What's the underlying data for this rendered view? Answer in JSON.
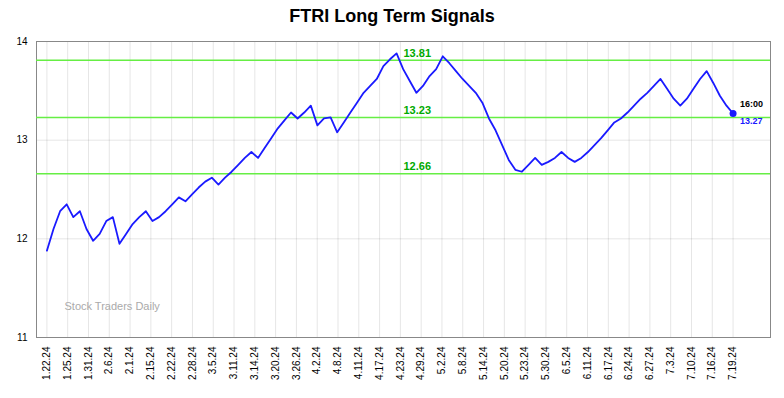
{
  "chart_data": {
    "type": "line",
    "title": "FTRI Long Term Signals",
    "x": [
      0,
      0.3173,
      0.6346,
      0.9519,
      1.2692,
      1.5865,
      1.9038,
      2.2212,
      2.5385,
      2.8558,
      3.1731,
      3.4904,
      3.8077,
      4.125,
      4.4423,
      4.7596,
      5.0769,
      5.3942,
      5.7115,
      6.0288,
      6.3462,
      6.6635,
      6.9808,
      7.2981,
      7.6154,
      7.9327,
      8.25,
      8.5673,
      8.8846,
      9.2019,
      9.5192,
      9.8365,
      10.1538,
      10.4712,
      10.7885,
      11.1058,
      11.4231,
      11.7404,
      12.0577,
      12.375,
      12.6923,
      13.0096,
      13.3269,
      13.6442,
      13.9615,
      14.2788,
      14.5962,
      14.9135,
      15.2308,
      15.5481,
      15.8654,
      16.1827,
      16.5,
      16.8173,
      17.1346,
      17.4519,
      17.7692,
      18.0865,
      18.4038,
      18.7212,
      19.0385,
      19.3558,
      19.6731,
      19.9904,
      20.3077,
      20.625,
      20.9423,
      21.2596,
      21.5769,
      21.8942,
      22.2115,
      22.5288,
      22.8462,
      23.1635,
      23.4808,
      23.7981,
      24.1154,
      24.4327,
      24.75,
      25.0673,
      25.3846,
      25.7019,
      26.0192,
      26.3365,
      26.6538,
      26.9712,
      27.2885,
      27.6058,
      27.9231,
      28.2404,
      28.5577,
      28.875,
      29.1923,
      29.5096,
      29.8269,
      30.1442,
      30.4615,
      30.7788,
      31.0962,
      31.4135,
      31.7308,
      32.0481,
      32.3654,
      32.6827,
      33
    ],
    "values": [
      11.88,
      12.1,
      12.28,
      12.35,
      12.22,
      12.28,
      12.1,
      11.98,
      12.05,
      12.18,
      12.22,
      11.95,
      12.05,
      12.15,
      12.22,
      12.28,
      12.18,
      12.22,
      12.28,
      12.35,
      12.42,
      12.38,
      12.45,
      12.52,
      12.58,
      12.62,
      12.55,
      12.62,
      12.68,
      12.75,
      12.82,
      12.88,
      12.82,
      12.92,
      13.02,
      13.12,
      13.2,
      13.28,
      13.22,
      13.28,
      13.35,
      13.15,
      13.22,
      13.23,
      13.08,
      13.18,
      13.28,
      13.38,
      13.48,
      13.55,
      13.62,
      13.75,
      13.82,
      13.88,
      13.72,
      13.6,
      13.48,
      13.55,
      13.65,
      13.72,
      13.85,
      13.78,
      13.7,
      13.62,
      13.55,
      13.48,
      13.38,
      13.22,
      13.1,
      12.95,
      12.8,
      12.7,
      12.68,
      12.75,
      12.82,
      12.75,
      12.78,
      12.82,
      12.88,
      12.82,
      12.78,
      12.82,
      12.88,
      12.95,
      13.02,
      13.1,
      13.18,
      13.22,
      13.28,
      13.35,
      13.42,
      13.48,
      13.55,
      13.62,
      13.52,
      13.42,
      13.35,
      13.42,
      13.52,
      13.62,
      13.7,
      13.58,
      13.45,
      13.35,
      13.27
    ],
    "color": "#1a1aff",
    "xlim": [
      -0.5,
      34.8
    ],
    "xticks": [
      {
        "value": 0,
        "label": "1.22.24"
      },
      {
        "value": 1,
        "label": "1.25.24"
      },
      {
        "value": 2,
        "label": "1.31.24"
      },
      {
        "value": 3,
        "label": "2.6.24"
      },
      {
        "value": 4,
        "label": "2.1.24"
      },
      {
        "value": 5,
        "label": "2.15.24"
      },
      {
        "value": 6,
        "label": "2.22.24"
      },
      {
        "value": 7,
        "label": "2.28.24"
      },
      {
        "value": 8,
        "label": "3.5.24"
      },
      {
        "value": 9,
        "label": "3.11.24"
      },
      {
        "value": 10,
        "label": "3.14.24"
      },
      {
        "value": 11,
        "label": "3.20.24"
      },
      {
        "value": 12,
        "label": "3.26.24"
      },
      {
        "value": 13,
        "label": "4.2.24"
      },
      {
        "value": 14,
        "label": "4.8.24"
      },
      {
        "value": 15,
        "label": "4.11.24"
      },
      {
        "value": 16,
        "label": "4.17.24"
      },
      {
        "value": 17,
        "label": "4.23.24"
      },
      {
        "value": 18,
        "label": "4.29.24"
      },
      {
        "value": 19,
        "label": "5.2.24"
      },
      {
        "value": 20,
        "label": "5.8.24"
      },
      {
        "value": 21,
        "label": "5.14.24"
      },
      {
        "value": 22,
        "label": "5.20.24"
      },
      {
        "value": 23,
        "label": "5.23.24"
      },
      {
        "value": 24,
        "label": "5.30.24"
      },
      {
        "value": 25,
        "label": "6.5.24"
      },
      {
        "value": 26,
        "label": "6.11.24"
      },
      {
        "value": 27,
        "label": "6.17.24"
      },
      {
        "value": 28,
        "label": "6.24.24"
      },
      {
        "value": 29,
        "label": "6.27.24"
      },
      {
        "value": 30,
        "label": "7.3.24"
      },
      {
        "value": 31,
        "label": "7.10.24"
      },
      {
        "value": 32,
        "label": "7.16.24"
      },
      {
        "value": 33,
        "label": "7.19.24"
      }
    ],
    "ylim": [
      11,
      14
    ],
    "yticks": [
      11,
      12,
      13,
      14
    ],
    "grid": true,
    "hlines": [
      {
        "value": 12.66,
        "color": "#66ee44",
        "label": {
          "text": "12.66",
          "color": "#00aa00"
        }
      },
      {
        "value": 13.23,
        "color": "#66ee44",
        "label": {
          "text": "13.23",
          "color": "#00aa00"
        }
      },
      {
        "value": 13.81,
        "color": "#66ee44",
        "label": {
          "text": "13.81",
          "color": "#00aa00"
        }
      }
    ],
    "end_labels": [
      {
        "text": "16:00",
        "color": "#000000"
      },
      {
        "text": "13.27",
        "color": "#1a1aff"
      }
    ],
    "watermark": "Stock Traders Daily"
  }
}
